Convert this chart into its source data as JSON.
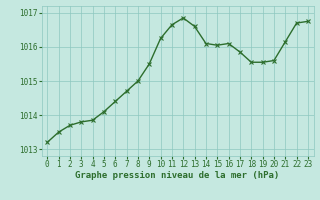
{
  "x": [
    0,
    1,
    2,
    3,
    4,
    5,
    6,
    7,
    8,
    9,
    10,
    11,
    12,
    13,
    14,
    15,
    16,
    17,
    18,
    19,
    20,
    21,
    22,
    23
  ],
  "y": [
    1013.2,
    1013.5,
    1013.7,
    1013.8,
    1013.85,
    1014.1,
    1014.4,
    1014.7,
    1015.0,
    1015.5,
    1016.25,
    1016.65,
    1016.85,
    1016.6,
    1016.1,
    1016.05,
    1016.1,
    1015.85,
    1015.55,
    1015.55,
    1015.6,
    1016.15,
    1016.7,
    1016.75
  ],
  "line_color": "#2d6e2d",
  "marker": "x",
  "marker_color": "#2d6e2d",
  "bg_color": "#c5e8e0",
  "grid_color": "#8ec8c0",
  "xlabel": "Graphe pression niveau de la mer (hPa)",
  "xlabel_color": "#2d6e2d",
  "tick_color": "#2d6e2d",
  "ylim": [
    1012.8,
    1017.2
  ],
  "xlim": [
    -0.5,
    23.5
  ],
  "yticks": [
    1013,
    1014,
    1015,
    1016,
    1017
  ],
  "xticks": [
    0,
    1,
    2,
    3,
    4,
    5,
    6,
    7,
    8,
    9,
    10,
    11,
    12,
    13,
    14,
    15,
    16,
    17,
    18,
    19,
    20,
    21,
    22,
    23
  ],
  "xlabel_fontsize": 6.5,
  "tick_fontsize": 5.5,
  "line_width": 1.0,
  "marker_size": 3
}
